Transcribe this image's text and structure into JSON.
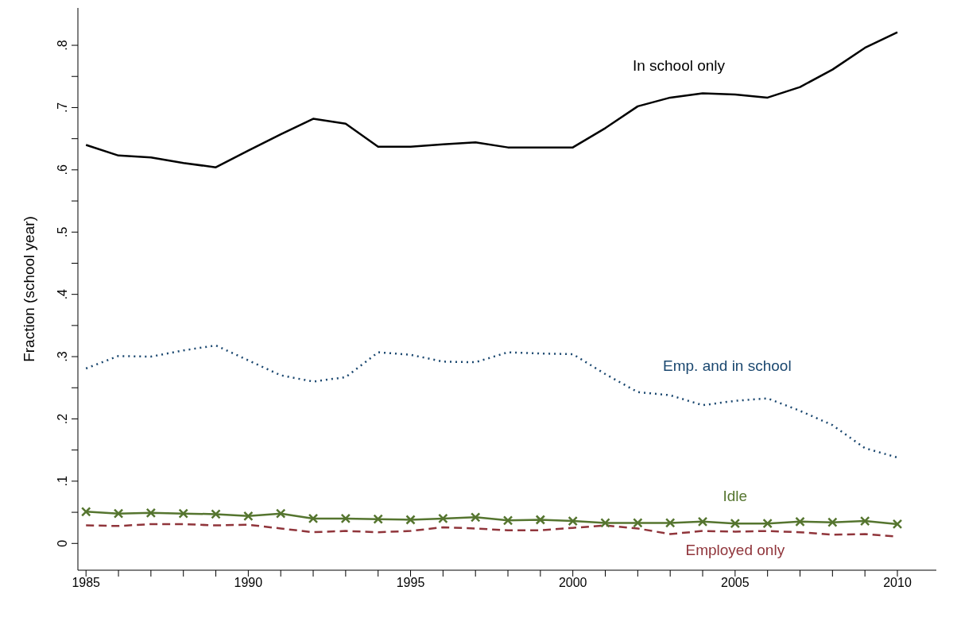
{
  "chart_data": {
    "type": "line",
    "ylabel": "Fraction (school year)",
    "x": [
      1985,
      1986,
      1987,
      1988,
      1989,
      1990,
      1991,
      1992,
      1993,
      1994,
      1995,
      1996,
      1997,
      1998,
      1999,
      2000,
      2001,
      2002,
      2003,
      2004,
      2005,
      2006,
      2007,
      2008,
      2009,
      2010
    ],
    "xlim": [
      1984.75,
      2011.2
    ],
    "xticks": [
      1985,
      {
        "value": 1986,
        "label": null
      },
      {
        "value": 1987,
        "label": null
      },
      {
        "value": 1988,
        "label": null
      },
      {
        "value": 1989,
        "label": null
      },
      1990,
      {
        "value": 1991,
        "label": null
      },
      {
        "value": 1992,
        "label": null
      },
      {
        "value": 1993,
        "label": null
      },
      {
        "value": 1994,
        "label": null
      },
      1995,
      {
        "value": 1996,
        "label": null
      },
      {
        "value": 1997,
        "label": null
      },
      {
        "value": 1998,
        "label": null
      },
      {
        "value": 1999,
        "label": null
      },
      2000,
      {
        "value": 2001,
        "label": null
      },
      {
        "value": 2002,
        "label": null
      },
      {
        "value": 2003,
        "label": null
      },
      {
        "value": 2004,
        "label": null
      },
      2005,
      {
        "value": 2006,
        "label": null
      },
      {
        "value": 2007,
        "label": null
      },
      {
        "value": 2008,
        "label": null
      },
      {
        "value": 2009,
        "label": null
      },
      2010
    ],
    "ylim": [
      -0.043,
      0.86
    ],
    "yticks": [
      0,
      {
        "value": 0.05,
        "label": null
      },
      {
        "value": 0.1,
        "label": ".1"
      },
      {
        "value": 0.15,
        "label": null
      },
      {
        "value": 0.2,
        "label": ".2"
      },
      {
        "value": 0.25,
        "label": null
      },
      {
        "value": 0.3,
        "label": ".3"
      },
      {
        "value": 0.35,
        "label": null
      },
      {
        "value": 0.4,
        "label": ".4"
      },
      {
        "value": 0.45,
        "label": null
      },
      {
        "value": 0.5,
        "label": ".5"
      },
      {
        "value": 0.55,
        "label": null
      },
      {
        "value": 0.6,
        "label": ".6"
      },
      {
        "value": 0.65,
        "label": null
      },
      {
        "value": 0.7,
        "label": ".7"
      },
      {
        "value": 0.75,
        "label": null
      },
      {
        "value": 0.8,
        "label": ".8"
      }
    ],
    "grid": false,
    "legend": false,
    "series": [
      {
        "name": "In school only",
        "color": "#000000",
        "line_style": "solid",
        "marker": "none",
        "values": [
          0.64,
          0.623,
          0.62,
          0.611,
          0.604,
          0.631,
          0.657,
          0.682,
          0.674,
          0.637,
          0.637,
          0.641,
          0.644,
          0.636,
          0.636,
          0.636,
          0.667,
          0.702,
          0.716,
          0.723,
          0.721,
          0.716,
          0.733,
          0.761,
          0.796,
          0.821
        ]
      },
      {
        "name": "Emp. and in school",
        "color": "#1a476f",
        "line_style": "dotted",
        "marker": "none",
        "values": [
          0.281,
          0.301,
          0.3,
          0.31,
          0.318,
          0.294,
          0.27,
          0.26,
          0.267,
          0.307,
          0.303,
          0.292,
          0.291,
          0.307,
          0.305,
          0.304,
          0.272,
          0.243,
          0.238,
          0.222,
          0.229,
          0.233,
          0.213,
          0.19,
          0.153,
          0.138
        ]
      },
      {
        "name": "Idle",
        "color": "#55752f",
        "line_style": "solid",
        "marker": "cross",
        "values": [
          0.051,
          0.048,
          0.049,
          0.048,
          0.047,
          0.044,
          0.048,
          0.04,
          0.04,
          0.039,
          0.038,
          0.04,
          0.042,
          0.037,
          0.038,
          0.036,
          0.033,
          0.033,
          0.033,
          0.035,
          0.032,
          0.032,
          0.035,
          0.034,
          0.036,
          0.031
        ]
      },
      {
        "name": "Employed only",
        "color": "#90353b",
        "line_style": "dashed",
        "marker": "none",
        "values": [
          0.029,
          0.028,
          0.031,
          0.031,
          0.029,
          0.03,
          0.024,
          0.018,
          0.02,
          0.018,
          0.02,
          0.026,
          0.024,
          0.021,
          0.021,
          0.025,
          0.029,
          0.024,
          0.015,
          0.02,
          0.019,
          0.02,
          0.018,
          0.014,
          0.015,
          0.011
        ]
      }
    ]
  }
}
